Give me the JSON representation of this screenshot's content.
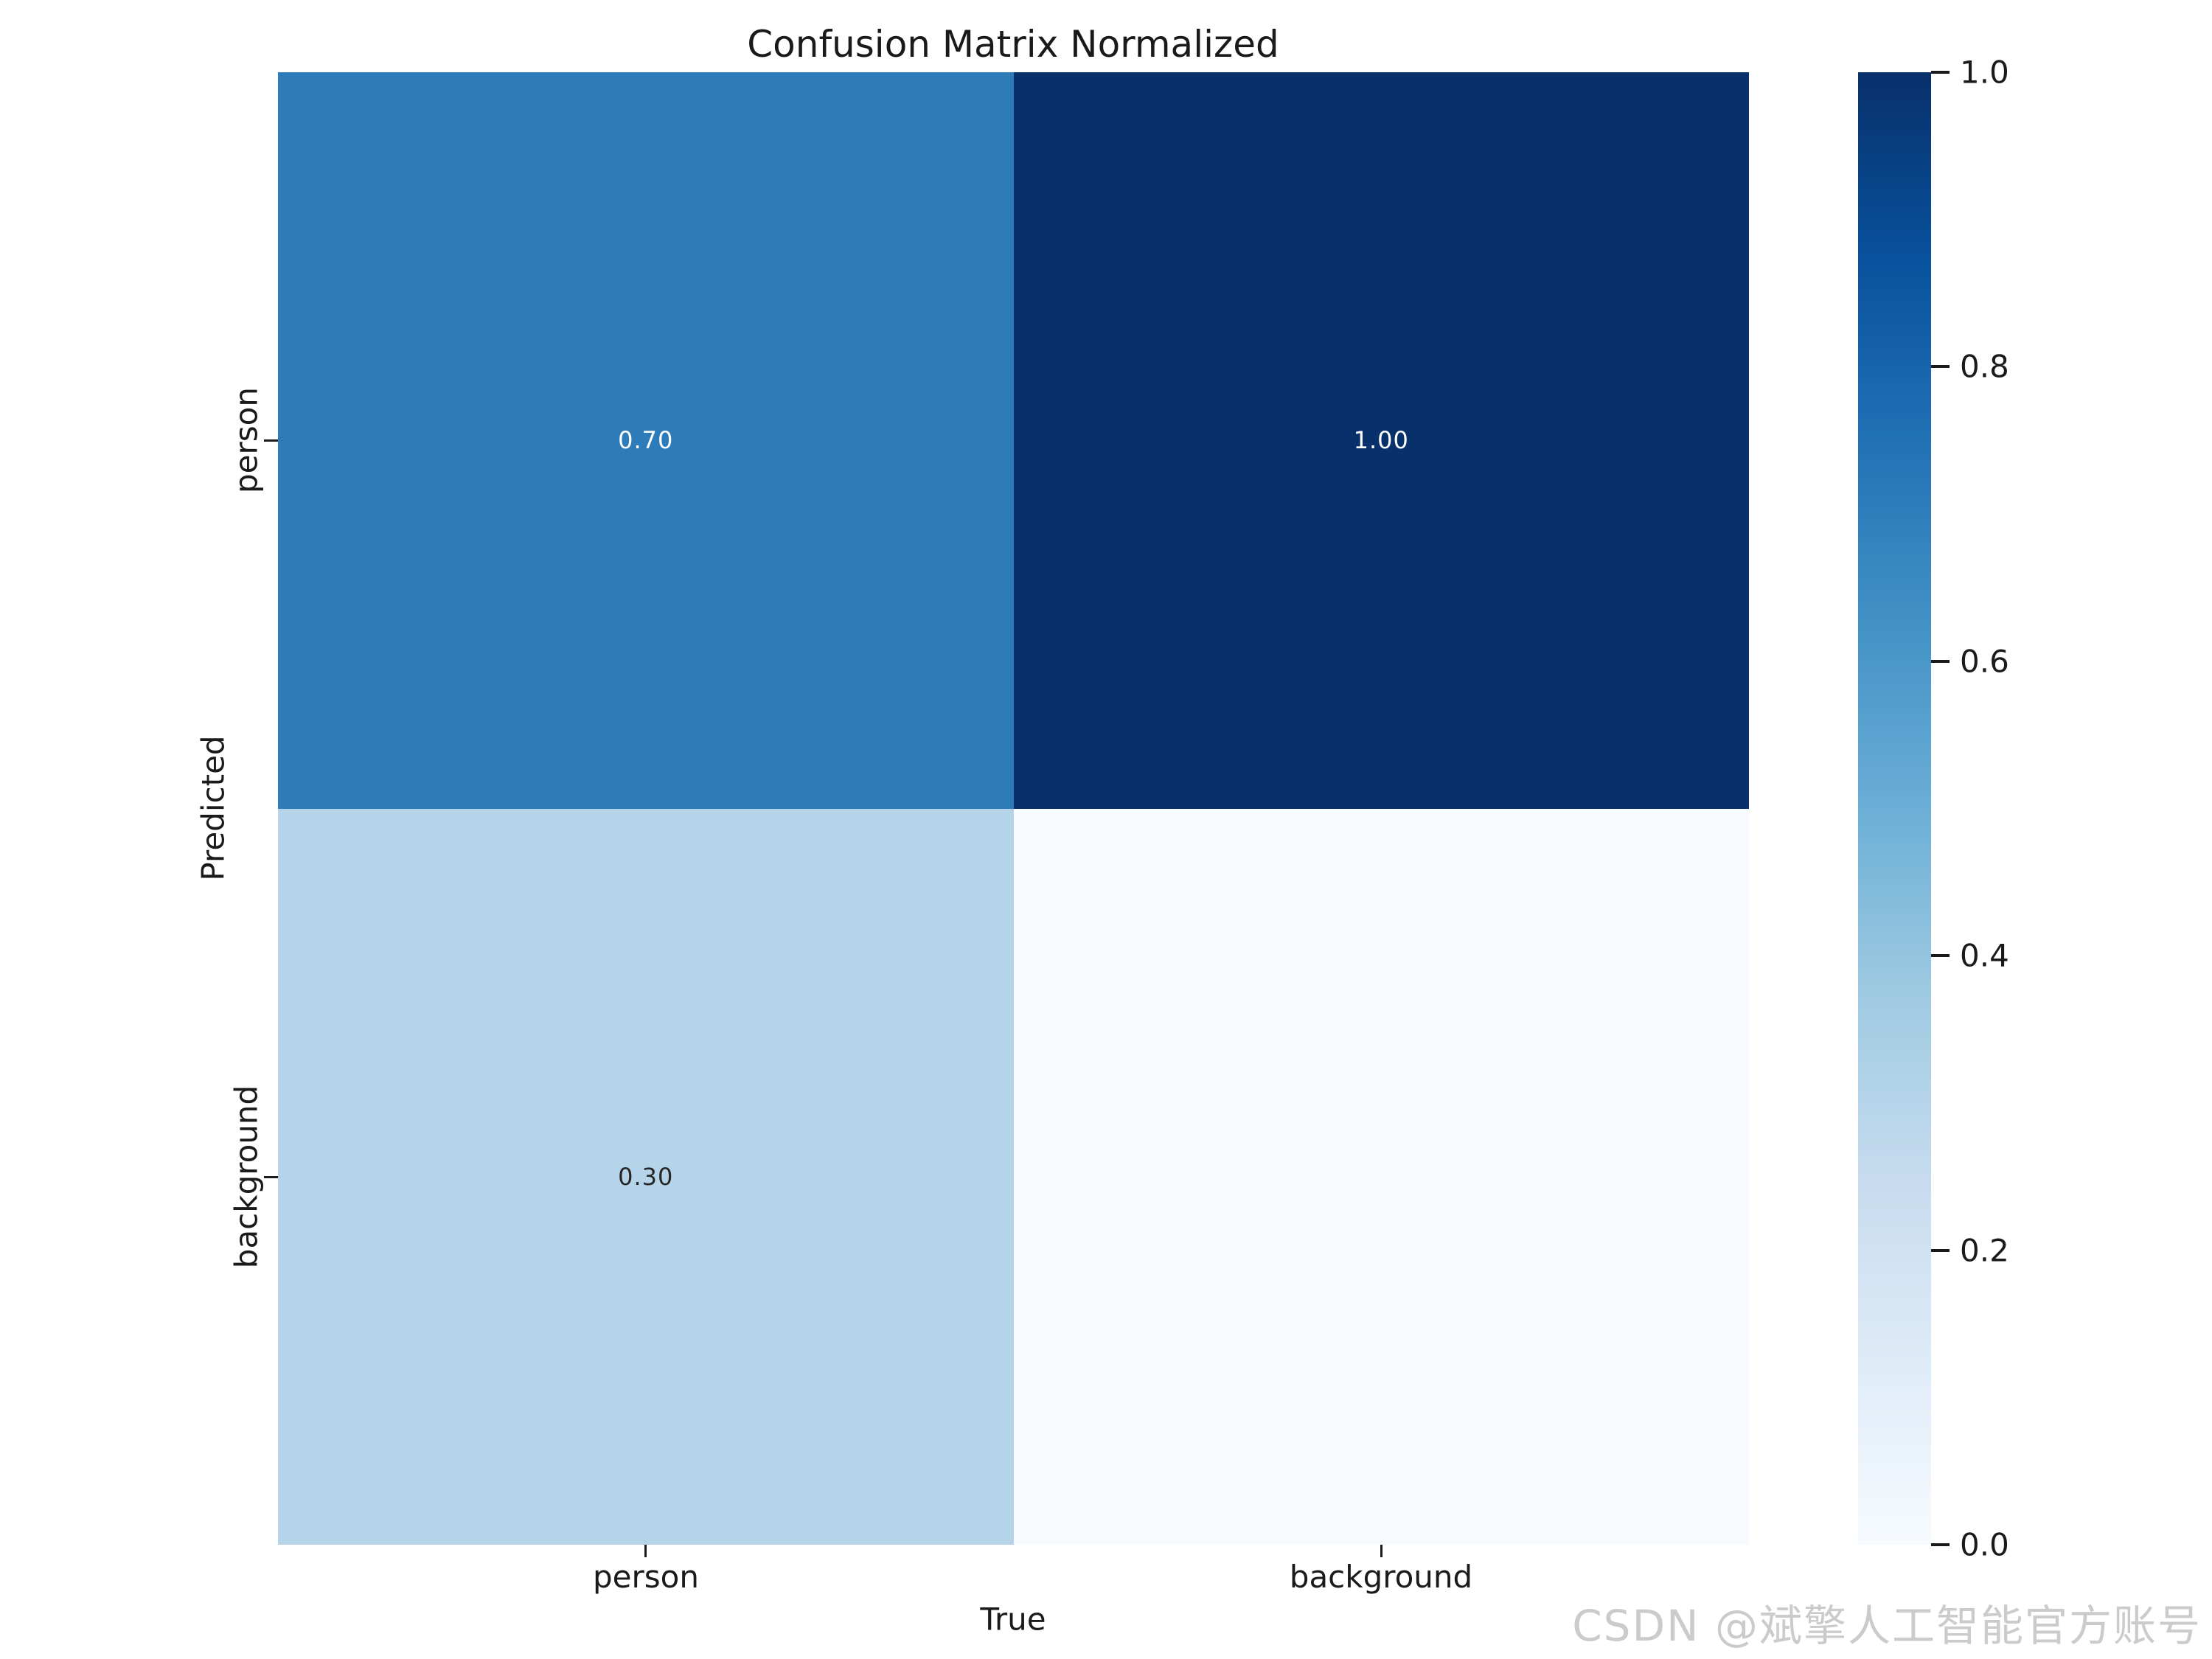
{
  "figure": {
    "title": "Confusion Matrix Normalized",
    "watermark": "CSDN @斌擎人工智能官方账号"
  },
  "axes": {
    "xlabel": "True",
    "ylabel": "Predicted",
    "x_tick_labels": [
      "person",
      "background"
    ],
    "y_tick_labels": [
      "person",
      "background"
    ]
  },
  "cells": [
    {
      "row": "person",
      "col": "person",
      "label": "0.70",
      "color": "#2e7bb9",
      "text_color": "#ffffff"
    },
    {
      "row": "person",
      "col": "background",
      "label": "1.00",
      "color": "#08306b",
      "text_color": "#ffffff"
    },
    {
      "row": "background",
      "col": "person",
      "label": "0.30",
      "color": "#b6d4e9",
      "text_color": "#262626"
    },
    {
      "row": "background",
      "col": "background",
      "label": "",
      "color": "#f7fbff",
      "text_color": "#262626"
    }
  ],
  "colorbar": {
    "tick_labels": [
      "1.0",
      "0.8",
      "0.6",
      "0.4",
      "0.2",
      "0.0"
    ],
    "min": 0.0,
    "max": 1.0,
    "gradient_bottom_to_top": [
      "#f7fbff",
      "#deebf7",
      "#c6dbef",
      "#9ecae1",
      "#6baed6",
      "#4292c6",
      "#2171b5",
      "#08519c",
      "#08306b"
    ]
  },
  "chart_data": {
    "type": "heatmap",
    "title": "Confusion Matrix Normalized",
    "xlabel": "True",
    "ylabel": "Predicted",
    "x_categories": [
      "person",
      "background"
    ],
    "y_categories": [
      "person",
      "background"
    ],
    "values": [
      [
        0.7,
        1.0
      ],
      [
        0.3,
        null
      ]
    ],
    "annotations": [
      [
        "0.70",
        "1.00"
      ],
      [
        "0.30",
        ""
      ]
    ],
    "colormap": "Blues",
    "value_range": [
      0.0,
      1.0
    ],
    "colorbar_ticks": [
      1.0,
      0.8,
      0.6,
      0.4,
      0.2,
      0.0
    ],
    "legend_position": "right",
    "grid": false
  }
}
